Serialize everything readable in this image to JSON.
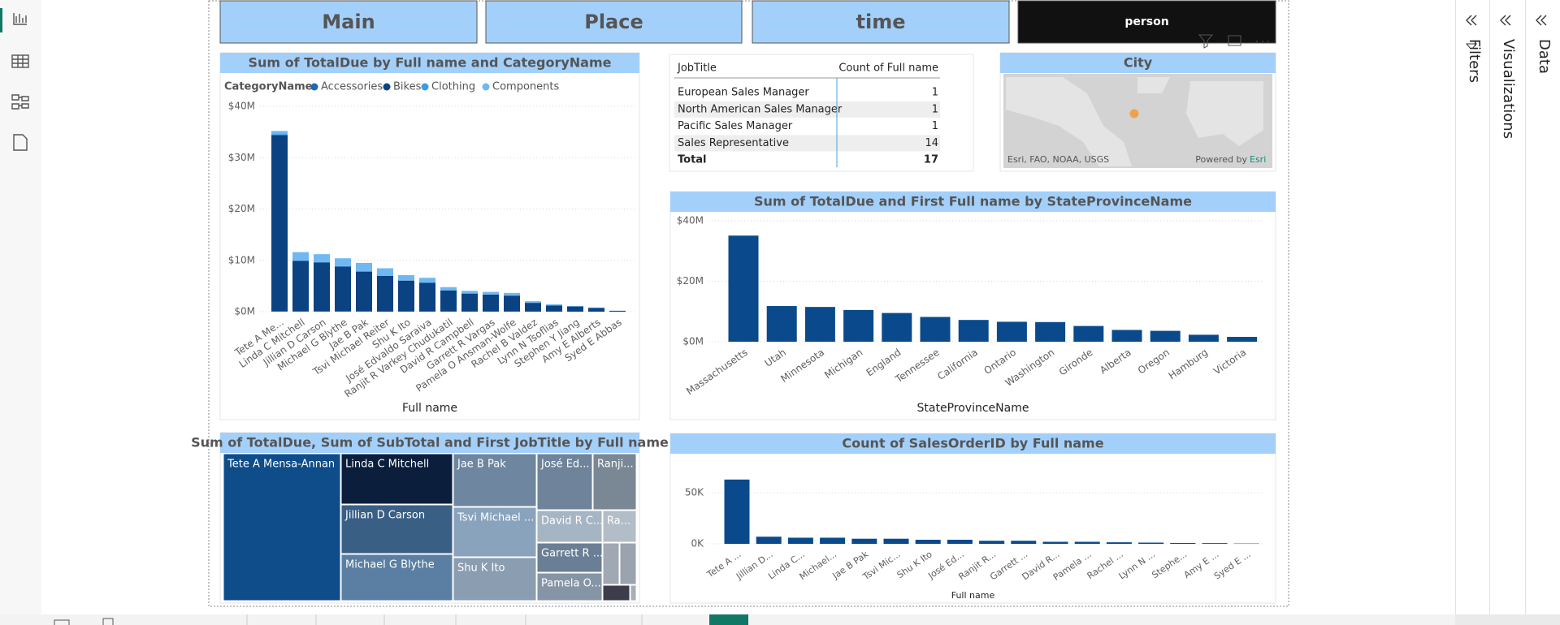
{
  "nav": [
    "Main",
    "Place",
    "time",
    "person"
  ],
  "chart_data": [
    {
      "type": "bar",
      "title": "Sum of TotalDue by Full name and CategoryName",
      "legend_title": "CategoryName",
      "x_label": "Full name",
      "categories": [
        "Tete A Me...",
        "Linda C Mitchell",
        "Jillian D Carson",
        "Michael G Blythe",
        "Jae B Pak",
        "Tsvi Michael Reiter",
        "Shu K Ito",
        "José Edvaldo Saraiva",
        "Ranjit R Varkey Chudukatil",
        "David R Campbell",
        "Garrett R Vargas",
        "Pamela O Ansman-Wolfe",
        "Rachel B Valdez",
        "Lynn N Tsoflias",
        "Stephen Y Jiang",
        "Amy E Alberts",
        "Syed E Abbas"
      ],
      "stacked": true,
      "series": [
        {
          "name": "Accessories",
          "color": "#1f66b8",
          "values": [
            100000,
            100000,
            100000,
            100000,
            100000,
            80000,
            60000,
            50000,
            40000,
            30000,
            30000,
            30000,
            20000,
            20000,
            10000,
            10000,
            5000
          ]
        },
        {
          "name": "Bikes",
          "color": "#0a4282",
          "values": [
            34300000,
            9800000,
            9500000,
            8700000,
            7700000,
            6900000,
            6000000,
            5600000,
            4100000,
            3500000,
            3300000,
            3100000,
            1700000,
            1200000,
            1000000,
            700000,
            150000
          ]
        },
        {
          "name": "Clothing",
          "color": "#3d9be6",
          "values": [
            200000,
            100000,
            100000,
            100000,
            100000,
            80000,
            60000,
            50000,
            40000,
            30000,
            30000,
            30000,
            20000,
            20000,
            10000,
            10000,
            5000
          ]
        },
        {
          "name": "Components",
          "color": "#6fb8f2",
          "values": [
            600000,
            1600000,
            1500000,
            1500000,
            1600000,
            1400000,
            1000000,
            900000,
            600000,
            500000,
            500000,
            500000,
            300000,
            200000,
            100000,
            100000,
            50000
          ]
        }
      ],
      "ylim": [
        0,
        40000000
      ],
      "yticks": [
        {
          "value": 0,
          "label": "$0M"
        },
        {
          "value": 10000000,
          "label": "$10M"
        },
        {
          "value": 20000000,
          "label": "$20M"
        },
        {
          "value": 30000000,
          "label": "$30M"
        },
        {
          "value": 40000000,
          "label": "$40M"
        }
      ],
      "grid": true
    },
    {
      "type": "bar",
      "title": "Sum of TotalDue and First Full name by StateProvinceName",
      "x_label": "StateProvinceName",
      "categories": [
        "Massachusetts",
        "Utah",
        "Minnesota",
        "Michigan",
        "England",
        "Tennessee",
        "California",
        "Ontario",
        "Washington",
        "Gironde",
        "Alberta",
        "Oregon",
        "Hamburg",
        "Victoria"
      ],
      "values": [
        35100000,
        11800000,
        11500000,
        10500000,
        9500000,
        8200000,
        7200000,
        6600000,
        6500000,
        5200000,
        3900000,
        3600000,
        2300000,
        1600000
      ],
      "color": "#0a4a8c",
      "ylim": [
        0,
        40000000
      ],
      "yticks": [
        {
          "value": 0,
          "label": "$0M"
        },
        {
          "value": 20000000,
          "label": "$20M"
        },
        {
          "value": 40000000,
          "label": "$40M"
        }
      ],
      "grid": true
    },
    {
      "type": "bar",
      "title": "Count of SalesOrderID by Full name",
      "x_label": "Full name",
      "categories": [
        "Tete A ...",
        "Jillian D...",
        "Linda C...",
        "Michael...",
        "Jae B Pak",
        "Tsvi Mic...",
        "Shu K Ito",
        "José Ed...",
        "Ranjit R...",
        "Garrett ...",
        "David R...",
        "Pamela ...",
        "Rachel ...",
        "Lynn N ...",
        "Stephe...",
        "Amy E ...",
        "Syed E ..."
      ],
      "values": [
        63000,
        7000,
        6000,
        6000,
        5000,
        5000,
        4000,
        4000,
        3000,
        3000,
        2000,
        2000,
        1500,
        1200,
        800,
        700,
        300
      ],
      "color": "#0a4a8c",
      "ylim": [
        0,
        70000
      ],
      "yticks": [
        {
          "value": 0,
          "label": "0K"
        },
        {
          "value": 50000,
          "label": "50K"
        }
      ],
      "grid": true
    }
  ],
  "table": {
    "columns": [
      "JobTitle",
      "Count of Full name"
    ],
    "rows": [
      [
        "European Sales Manager",
        1
      ],
      [
        "North American Sales Manager",
        1
      ],
      [
        "Pacific Sales Manager",
        1
      ],
      [
        "Sales Representative",
        14
      ]
    ],
    "total": [
      "Total",
      17
    ]
  },
  "map": {
    "title": "City",
    "attribution": "Esri, FAO, NOAA, USGS",
    "powered": "Powered by",
    "brand": "Esri"
  },
  "treemap": {
    "title": "Sum of TotalDue, Sum of SubTotal and First JobTitle by Full name",
    "labels": [
      "Tete A Mensa-Annan",
      "Linda C Mitchell",
      "Jillian D Carson",
      "Michael G Blythe",
      "Jae B Pak",
      "Tsvi Michael ...",
      "Shu K Ito",
      "José Ed...",
      "Ranji...",
      "David R C...",
      "Ra...",
      "Garrett R ...",
      "Pamela O..."
    ]
  },
  "panes": [
    "Filters",
    "Visualizations",
    "Data"
  ]
}
